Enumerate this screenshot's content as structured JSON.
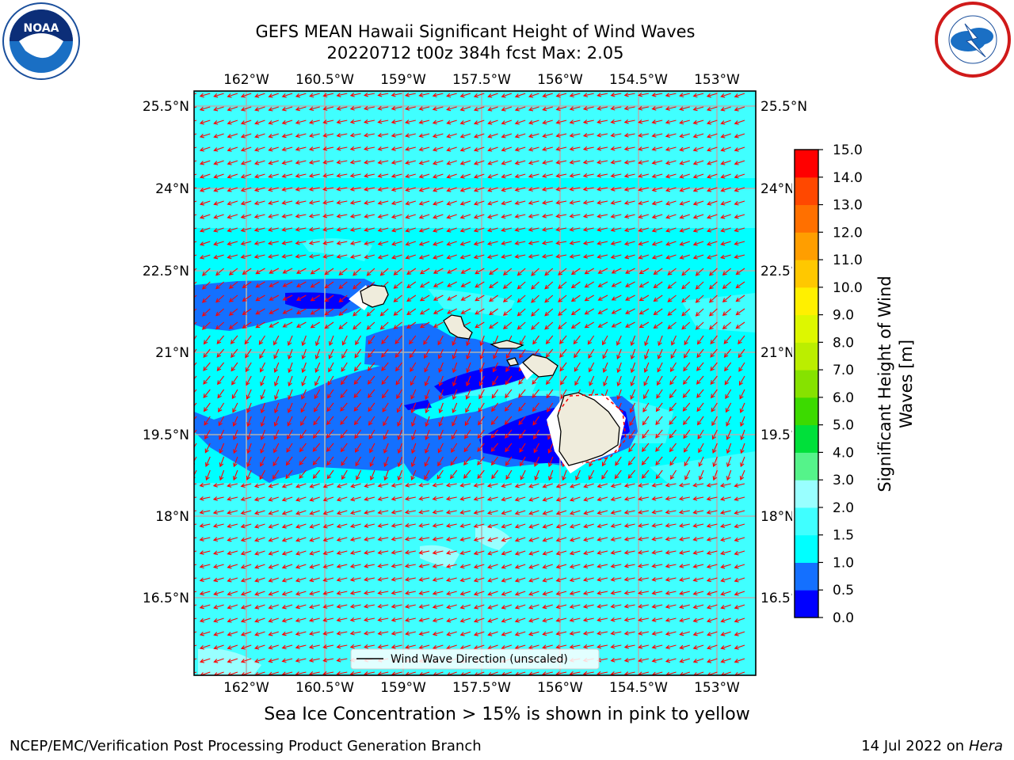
{
  "title": {
    "line1": "GEFS MEAN Hawaii Significant Height of Wind Waves",
    "line2": "20220712 t00z 384h fcst   Max: 2.05"
  },
  "map": {
    "lon_labels": [
      "162°W",
      "160.5°W",
      "159°W",
      "157.5°W",
      "156°W",
      "154.5°W",
      "153°W"
    ],
    "lat_labels": [
      "25.5°N",
      "24°N",
      "22.5°N",
      "21°N",
      "19.5°N",
      "18°N",
      "16.5°N"
    ],
    "legend_label": "Wind Wave Direction (unscaled)",
    "arrow_color": "#ff0000",
    "land_color": "#efecdc"
  },
  "colorbar": {
    "title_line1": "Significant Height of Wind",
    "title_line2": "Waves [m]",
    "ticks": [
      "0.0",
      "0.5",
      "1.0",
      "1.5",
      "2.0",
      "3.0",
      "4.0",
      "5.0",
      "6.0",
      "7.0",
      "8.0",
      "9.0",
      "10.0",
      "11.0",
      "12.0",
      "13.0",
      "14.0",
      "15.0"
    ],
    "colors": [
      "#0000ff",
      "#1470ff",
      "#00ffff",
      "#40ffff",
      "#99ffff",
      "#55f38a",
      "#00e03a",
      "#3cda00",
      "#86e200",
      "#bbee00",
      "#ddf700",
      "#fff000",
      "#ffc800",
      "#ff9e00",
      "#ff7000",
      "#ff4800",
      "#ff0000"
    ]
  },
  "ice_note": "Sea Ice Concentration > 15% is shown in pink to yellow",
  "footer": {
    "left": "NCEP/EMC/Verification Post Processing Product Generation Branch",
    "right_prefix": "14 Jul 2022 on ",
    "right_host": "Hera"
  }
}
